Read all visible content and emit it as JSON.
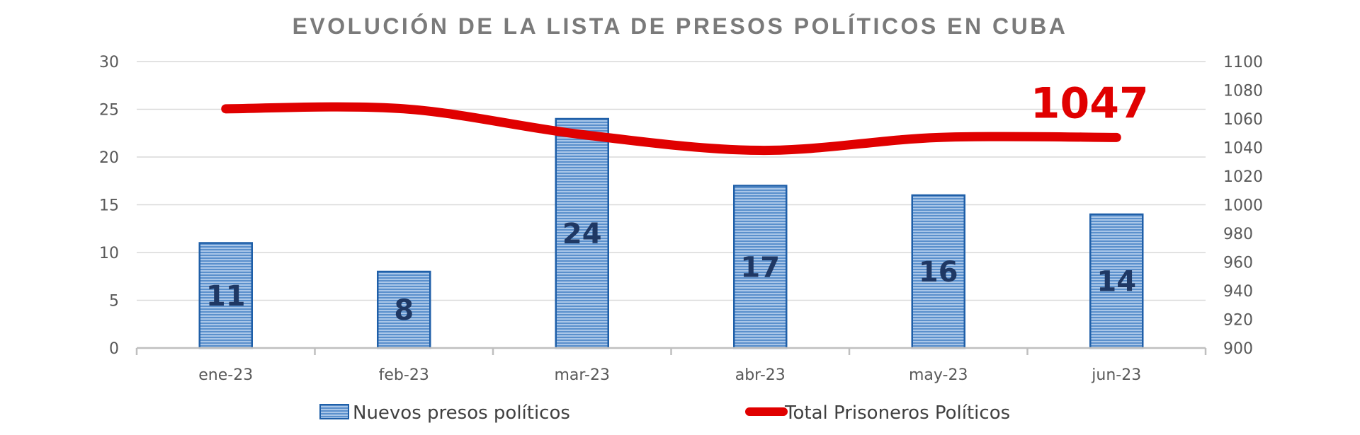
{
  "chart_data": {
    "type": "bar+line",
    "title": "EVOLUCIÓN DE LA LISTA DE PRESOS POLÍTICOS EN CUBA",
    "categories": [
      "ene-23",
      "feb-23",
      "mar-23",
      "abr-23",
      "may-23",
      "jun-23"
    ],
    "series": [
      {
        "name": "Nuevos presos políticos",
        "type": "bar",
        "axis": "left",
        "values": [
          11,
          8,
          24,
          17,
          16,
          14
        ],
        "data_labels": [
          "11",
          "8",
          "24",
          "17",
          "16",
          "14"
        ],
        "color": "#4f86c6",
        "border_color": "#1f5fa8"
      },
      {
        "name": "Total Prisoneros Políticos",
        "type": "line",
        "axis": "right",
        "values": [
          1067,
          1067,
          1049,
          1038,
          1047,
          1047
        ],
        "color": "#e00000"
      }
    ],
    "y_left": {
      "min": 0,
      "max": 30,
      "step": 5,
      "ticks": [
        "0",
        "5",
        "10",
        "15",
        "20",
        "25",
        "30"
      ]
    },
    "y_right": {
      "min": 900,
      "max": 1100,
      "step": 20,
      "ticks": [
        "900",
        "920",
        "940",
        "960",
        "980",
        "1000",
        "1020",
        "1040",
        "1060",
        "1080",
        "1100"
      ]
    },
    "annotation": {
      "text": "1047",
      "series": "Total Prisoneros Políticos",
      "category": "jun-23",
      "color": "#e00000"
    },
    "grid": true,
    "legend": {
      "position": "bottom",
      "items": [
        "Nuevos presos políticos",
        "Total Prisoneros Políticos"
      ]
    }
  },
  "colors": {
    "title": "#7a7a7a",
    "axis_text": "#595959",
    "gridline": "#d9d9d9",
    "bar_fill": "#4f86c6",
    "bar_stripe": "#a9c6e8",
    "bar_border": "#1f5fa8",
    "bar_label": "#1f3864",
    "line": "#e00000"
  }
}
